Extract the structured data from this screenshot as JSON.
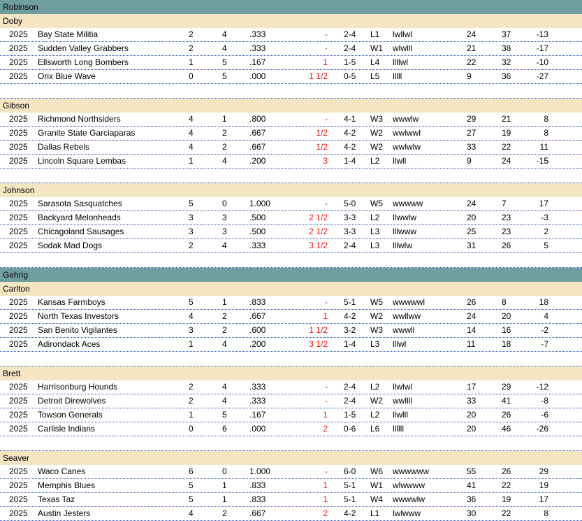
{
  "leagues": [
    {
      "name": "Robinson",
      "divisions": [
        {
          "name": "Doby",
          "teams": [
            {
              "year": "2025",
              "team": "Bay State Militia",
              "w": "2",
              "l": "4",
              "pct": ".333",
              "gb": "-",
              "l10": "2-4",
              "streak": "L1",
              "last": "lwllwl",
              "rs": "24",
              "ra": "37",
              "diff": "-13"
            },
            {
              "year": "2025",
              "team": "Sudden Valley Grabbers",
              "w": "2",
              "l": "4",
              "pct": ".333",
              "gb": "-",
              "l10": "2-4",
              "streak": "W1",
              "last": "wlwlll",
              "rs": "21",
              "ra": "38",
              "diff": "-17"
            },
            {
              "year": "2025",
              "team": "Ellsworth Long Bombers",
              "w": "1",
              "l": "5",
              "pct": ".167",
              "gb": "1",
              "l10": "1-5",
              "streak": "L4",
              "last": "llllwl",
              "rs": "22",
              "ra": "32",
              "diff": "-10"
            },
            {
              "year": "2025",
              "team": "Orix  Blue Wave",
              "w": "0",
              "l": "5",
              "pct": ".000",
              "gb": "1 1/2",
              "l10": "0-5",
              "streak": "L5",
              "last": "lllll",
              "rs": "9",
              "ra": "36",
              "diff": "-27"
            }
          ]
        },
        {
          "name": "Gibson",
          "teams": [
            {
              "year": "2025",
              "team": "Richmond Northsiders",
              "w": "4",
              "l": "1",
              "pct": ".800",
              "gb": "-",
              "l10": "4-1",
              "streak": "W3",
              "last": "wwwlw",
              "rs": "29",
              "ra": "21",
              "diff": "8"
            },
            {
              "year": "2025",
              "team": "Granite State Garciaparas",
              "w": "4",
              "l": "2",
              "pct": ".667",
              "gb": "1/2",
              "l10": "4-2",
              "streak": "W2",
              "last": "wwlwwl",
              "rs": "27",
              "ra": "19",
              "diff": "8"
            },
            {
              "year": "2025",
              "team": "Dallas Rebels",
              "w": "4",
              "l": "2",
              "pct": ".667",
              "gb": "1/2",
              "l10": "4-2",
              "streak": "W2",
              "last": "wwlwlw",
              "rs": "33",
              "ra": "22",
              "diff": "11"
            },
            {
              "year": "2025",
              "team": "Lincoln Square Lembas",
              "w": "1",
              "l": "4",
              "pct": ".200",
              "gb": "3",
              "l10": "1-4",
              "streak": "L2",
              "last": "llwll",
              "rs": "9",
              "ra": "24",
              "diff": "-15"
            }
          ]
        },
        {
          "name": "Johnson",
          "teams": [
            {
              "year": "2025",
              "team": "Sarasota Sasquatches",
              "w": "5",
              "l": "0",
              "pct": "1.000",
              "gb": "-",
              "l10": "5-0",
              "streak": "W5",
              "last": "wwwww",
              "rs": "24",
              "ra": "7",
              "diff": "17"
            },
            {
              "year": "2025",
              "team": "Backyard Melonheads",
              "w": "3",
              "l": "3",
              "pct": ".500",
              "gb": "2 1/2",
              "l10": "3-3",
              "streak": "L2",
              "last": "llwwlw",
              "rs": "20",
              "ra": "23",
              "diff": "-3"
            },
            {
              "year": "2025",
              "team": "Chicagoland Sausages",
              "w": "3",
              "l": "3",
              "pct": ".500",
              "gb": "2 1/2",
              "l10": "3-3",
              "streak": "L3",
              "last": "lllwww",
              "rs": "25",
              "ra": "23",
              "diff": "2"
            },
            {
              "year": "2025",
              "team": "Sodak Mad Dogs",
              "w": "2",
              "l": "4",
              "pct": ".333",
              "gb": "3 1/2",
              "l10": "2-4",
              "streak": "L3",
              "last": "lllwlw",
              "rs": "31",
              "ra": "26",
              "diff": "5"
            }
          ]
        }
      ]
    },
    {
      "name": "Gehrig",
      "divisions": [
        {
          "name": "Carlton",
          "teams": [
            {
              "year": "2025",
              "team": "Kansas Farmboys",
              "w": "5",
              "l": "1",
              "pct": ".833",
              "gb": "-",
              "l10": "5-1",
              "streak": "W5",
              "last": "wwwwwl",
              "rs": "26",
              "ra": "8",
              "diff": "18"
            },
            {
              "year": "2025",
              "team": "North Texas Investors",
              "w": "4",
              "l": "2",
              "pct": ".667",
              "gb": "1",
              "l10": "4-2",
              "streak": "W2",
              "last": "wwllww",
              "rs": "24",
              "ra": "20",
              "diff": "4"
            },
            {
              "year": "2025",
              "team": "San Benito Vigilantes",
              "w": "3",
              "l": "2",
              "pct": ".600",
              "gb": "1 1/2",
              "l10": "3-2",
              "streak": "W3",
              "last": "wwwll",
              "rs": "14",
              "ra": "16",
              "diff": "-2"
            },
            {
              "year": "2025",
              "team": "Adirondack Aces",
              "w": "1",
              "l": "4",
              "pct": ".200",
              "gb": "3 1/2",
              "l10": "1-4",
              "streak": "L3",
              "last": "lllwl",
              "rs": "11",
              "ra": "18",
              "diff": "-7"
            }
          ]
        },
        {
          "name": "Brett",
          "teams": [
            {
              "year": "2025",
              "team": "Harrisonburg Hounds",
              "w": "2",
              "l": "4",
              "pct": ".333",
              "gb": "-",
              "l10": "2-4",
              "streak": "L2",
              "last": "llwlwl",
              "rs": "17",
              "ra": "29",
              "diff": "-12"
            },
            {
              "year": "2025",
              "team": "Detroit Direwolves",
              "w": "2",
              "l": "4",
              "pct": ".333",
              "gb": "-",
              "l10": "2-4",
              "streak": "W2",
              "last": "wwllll",
              "rs": "33",
              "ra": "41",
              "diff": "-8"
            },
            {
              "year": "2025",
              "team": "Towson  Generals",
              "w": "1",
              "l": "5",
              "pct": ".167",
              "gb": "1",
              "l10": "1-5",
              "streak": "L2",
              "last": "llwlll",
              "rs": "20",
              "ra": "26",
              "diff": "-6"
            },
            {
              "year": "2025",
              "team": "Carlisle Indians",
              "w": "0",
              "l": "6",
              "pct": ".000",
              "gb": "2",
              "l10": "0-6",
              "streak": "L6",
              "last": "llllll",
              "rs": "20",
              "ra": "46",
              "diff": "-26"
            }
          ]
        },
        {
          "name": "Seaver",
          "teams": [
            {
              "year": "2025",
              "team": "Waco Canes",
              "w": "6",
              "l": "0",
              "pct": "1.000",
              "gb": "-",
              "l10": "6-0",
              "streak": "W6",
              "last": "wwwwww",
              "rs": "55",
              "ra": "26",
              "diff": "29"
            },
            {
              "year": "2025",
              "team": "Memphis Blues",
              "w": "5",
              "l": "1",
              "pct": ".833",
              "gb": "1",
              "l10": "5-1",
              "streak": "W1",
              "last": "wlwwww",
              "rs": "41",
              "ra": "22",
              "diff": "19"
            },
            {
              "year": "2025",
              "team": "Texas Taz",
              "w": "5",
              "l": "1",
              "pct": ".833",
              "gb": "1",
              "l10": "5-1",
              "streak": "W4",
              "last": "wwwwlw",
              "rs": "36",
              "ra": "19",
              "diff": "17"
            },
            {
              "year": "2025",
              "team": "Austin Jesters",
              "w": "4",
              "l": "2",
              "pct": ".667",
              "gb": "2",
              "l10": "4-2",
              "streak": "L1",
              "last": "lwlwww",
              "rs": "30",
              "ra": "22",
              "diff": "8"
            }
          ]
        }
      ]
    }
  ],
  "colors": {
    "league_header_bg": "#6f9ea1",
    "division_header_bg": "#f4e5c3",
    "games_behind_text": "#e8180c",
    "row_separator": "#2b4fb8"
  }
}
